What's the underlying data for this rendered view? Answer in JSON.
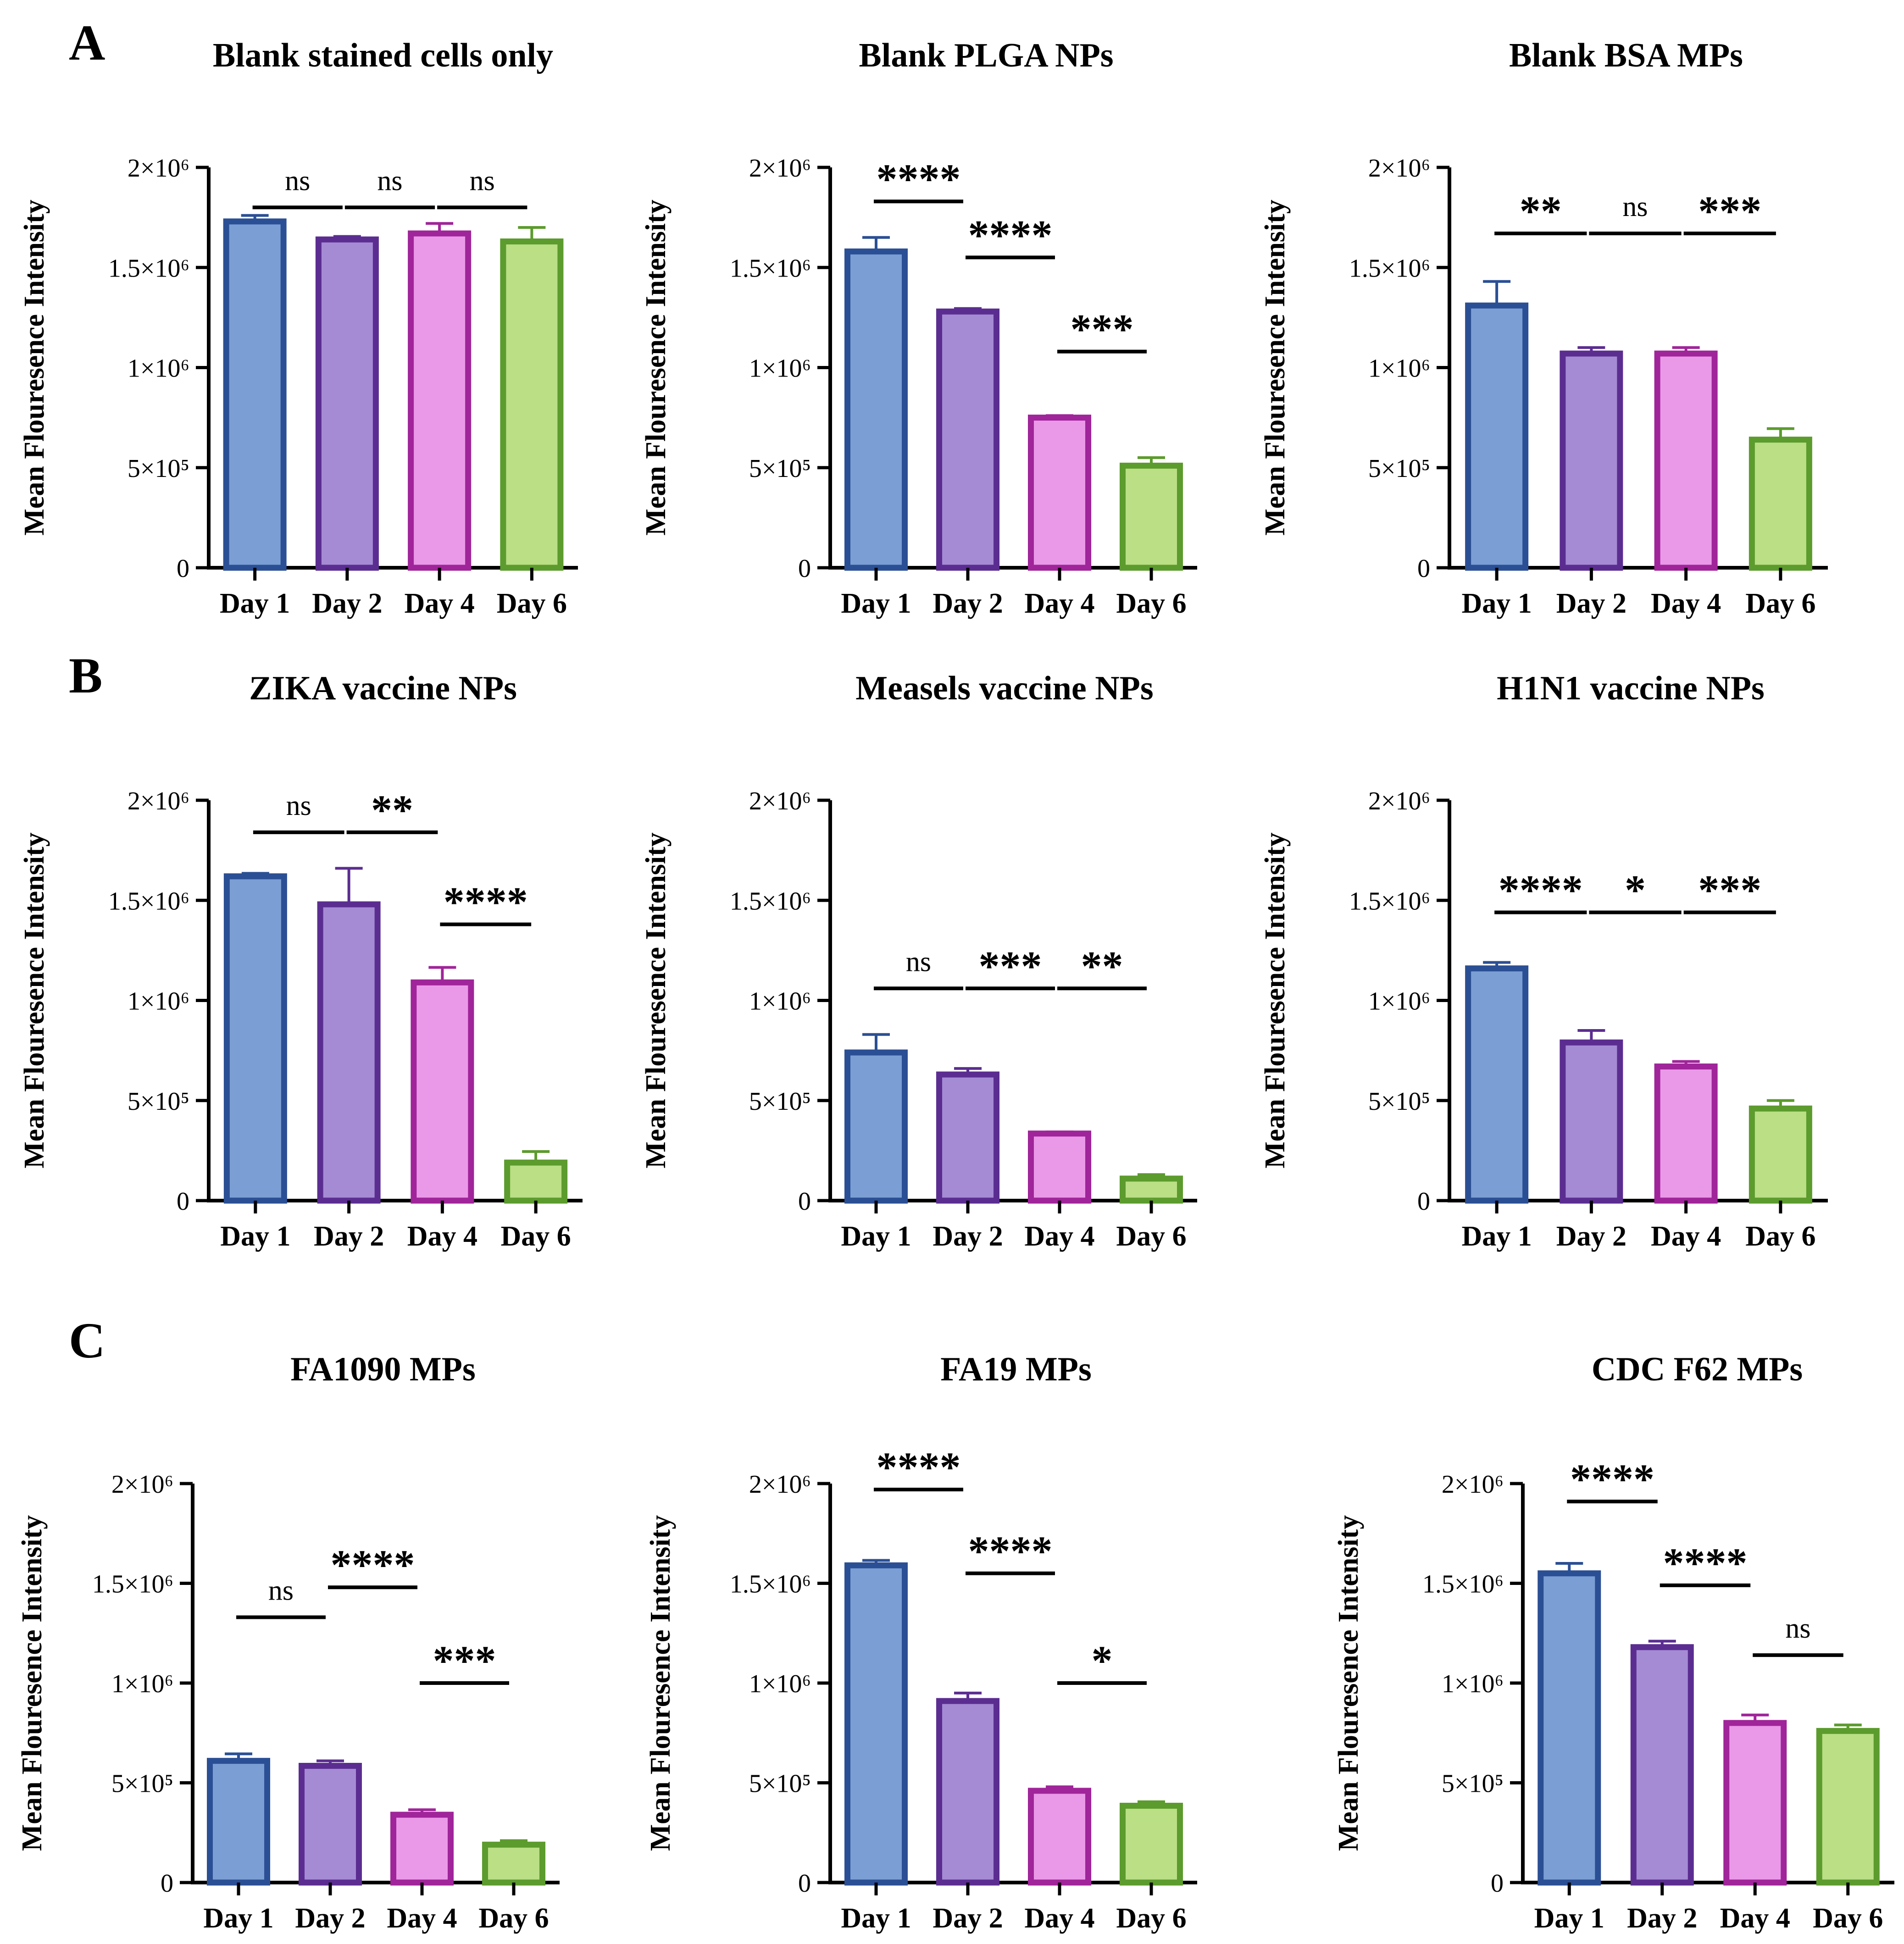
{
  "figure": {
    "panel_letters": [
      "A",
      "B",
      "C"
    ]
  },
  "colors": {
    "fill": [
      "#7b9fd4",
      "#a58bd4",
      "#ea99e9",
      "#badf85"
    ],
    "stroke": [
      "#2b4f94",
      "#5b2d91",
      "#a0249a",
      "#5c9b2d"
    ],
    "axis": "#000000"
  },
  "chart_data": [
    {
      "type": "bar",
      "title": "Blank stained cells only",
      "ylabel": "Mean Flouresence Intensity",
      "xlabel": "",
      "categories": [
        "Day 1",
        "Day 2",
        "Day 4",
        "Day 6"
      ],
      "values": [
        1730000,
        1640000,
        1670000,
        1630000
      ],
      "errors": [
        30000,
        15000,
        50000,
        70000
      ],
      "ylim": [
        0,
        2000000
      ],
      "yticks": [
        "0",
        "5×10⁵",
        "1×10⁶",
        "1.5×10⁶",
        "2×10⁶"
      ],
      "comparisons": [
        {
          "from": 0,
          "to": 1,
          "label": "ns",
          "y": 1800000
        },
        {
          "from": 1,
          "to": 2,
          "label": "ns",
          "y": 1800000
        },
        {
          "from": 2,
          "to": 3,
          "label": "ns",
          "y": 1800000
        }
      ]
    },
    {
      "type": "bar",
      "title": "Blank PLGA NPs",
      "ylabel": "Mean Flouresence Intensity",
      "xlabel": "",
      "categories": [
        "Day 1",
        "Day 2",
        "Day 4",
        "Day 6"
      ],
      "values": [
        1580000,
        1280000,
        750000,
        510000
      ],
      "errors": [
        70000,
        15000,
        10000,
        40000
      ],
      "ylim": [
        0,
        2000000
      ],
      "yticks": [
        "0",
        "5×10⁵",
        "1×10⁶",
        "1.5×10⁶",
        "2×10⁶"
      ],
      "comparisons": [
        {
          "from": 0,
          "to": 1,
          "label": "****",
          "y": 1830000
        },
        {
          "from": 1,
          "to": 2,
          "label": "****",
          "y": 1550000
        },
        {
          "from": 2,
          "to": 3,
          "label": "***",
          "y": 1080000
        }
      ]
    },
    {
      "type": "bar",
      "title": "Blank BSA MPs",
      "ylabel": "Mean Flouresence Intensity",
      "xlabel": "",
      "categories": [
        "Day 1",
        "Day 2",
        "Day 4",
        "Day 6"
      ],
      "values": [
        1310000,
        1070000,
        1070000,
        640000
      ],
      "errors": [
        120000,
        30000,
        30000,
        55000
      ],
      "ylim": [
        0,
        2000000
      ],
      "yticks": [
        "0",
        "5×10⁵",
        "1×10⁶",
        "1.5×10⁶",
        "2×10⁶"
      ],
      "comparisons": [
        {
          "from": 0,
          "to": 1,
          "label": "**",
          "y": 1670000
        },
        {
          "from": 1,
          "to": 2,
          "label": "ns",
          "y": 1670000
        },
        {
          "from": 2,
          "to": 3,
          "label": "***",
          "y": 1670000
        }
      ]
    },
    {
      "type": "bar",
      "title": "ZIKA vaccine NPs",
      "ylabel": "Mean Flouresence Intensity",
      "xlabel": "",
      "categories": [
        "Day 1",
        "Day 2",
        "Day 4",
        "Day 6"
      ],
      "values": [
        1620000,
        1480000,
        1090000,
        190000
      ],
      "errors": [
        15000,
        180000,
        75000,
        55000
      ],
      "ylim": [
        0,
        2000000
      ],
      "yticks": [
        "0",
        "5×10⁵",
        "1×10⁶",
        "1.5×10⁶",
        "2×10⁶"
      ],
      "comparisons": [
        {
          "from": 0,
          "to": 1,
          "label": "ns",
          "y": 1840000
        },
        {
          "from": 1,
          "to": 2,
          "label": "**",
          "y": 1840000
        },
        {
          "from": 2,
          "to": 3,
          "label": "****",
          "y": 1380000
        }
      ]
    },
    {
      "type": "bar",
      "title": "Measels vaccine NPs",
      "ylabel": "Mean Flouresence Intensity",
      "xlabel": "",
      "categories": [
        "Day 1",
        "Day 2",
        "Day 4",
        "Day 6"
      ],
      "values": [
        740000,
        630000,
        335000,
        110000
      ],
      "errors": [
        90000,
        30000,
        8000,
        20000
      ],
      "ylim": [
        0,
        2000000
      ],
      "yticks": [
        "0",
        "5×10⁵",
        "1×10⁶",
        "1.5×10⁶",
        "2×10⁶"
      ],
      "comparisons": [
        {
          "from": 0,
          "to": 1,
          "label": "ns",
          "y": 1060000
        },
        {
          "from": 1,
          "to": 2,
          "label": "***",
          "y": 1060000
        },
        {
          "from": 2,
          "to": 3,
          "label": "**",
          "y": 1060000
        }
      ]
    },
    {
      "type": "bar",
      "title": "H1N1 vaccine NPs",
      "ylabel": "Mean Flouresence Intensity",
      "xlabel": "",
      "categories": [
        "Day 1",
        "Day 2",
        "Day 4",
        "Day 6"
      ],
      "values": [
        1160000,
        790000,
        670000,
        460000
      ],
      "errors": [
        30000,
        60000,
        25000,
        40000
      ],
      "ylim": [
        0,
        2000000
      ],
      "yticks": [
        "0",
        "5×10⁵",
        "1×10⁶",
        "1.5×10⁶",
        "2×10⁶"
      ],
      "comparisons": [
        {
          "from": 0,
          "to": 1,
          "label": "****",
          "y": 1440000
        },
        {
          "from": 1,
          "to": 2,
          "label": "*",
          "y": 1440000
        },
        {
          "from": 2,
          "to": 3,
          "label": "***",
          "y": 1440000
        }
      ]
    },
    {
      "type": "bar",
      "title": "FA1090 MPs",
      "ylabel": "Mean Flouresence Intensity",
      "xlabel": "",
      "categories": [
        "Day 1",
        "Day 2",
        "Day 4",
        "Day 6"
      ],
      "values": [
        610000,
        585000,
        340000,
        190000
      ],
      "errors": [
        35000,
        25000,
        25000,
        20000
      ],
      "ylim": [
        0,
        2000000
      ],
      "yticks": [
        "0",
        "5×10⁵",
        "1×10⁶",
        "1.5×10⁶",
        "2×10⁶"
      ],
      "comparisons": [
        {
          "from": 0,
          "to": 1,
          "label": "ns",
          "y": 1330000
        },
        {
          "from": 1,
          "to": 2,
          "label": "****",
          "y": 1480000
        },
        {
          "from": 2,
          "to": 3,
          "label": "***",
          "y": 1000000
        }
      ]
    },
    {
      "type": "bar",
      "title": "FA19 MPs",
      "ylabel": "Mean Flouresence Intensity",
      "xlabel": "",
      "categories": [
        "Day 1",
        "Day 2",
        "Day 4",
        "Day 6"
      ],
      "values": [
        1590000,
        910000,
        460000,
        385000
      ],
      "errors": [
        25000,
        40000,
        20000,
        20000
      ],
      "ylim": [
        0,
        2000000
      ],
      "yticks": [
        "0",
        "5×10⁵",
        "1×10⁶",
        "1.5×10⁶",
        "2×10⁶"
      ],
      "comparisons": [
        {
          "from": 0,
          "to": 1,
          "label": "****",
          "y": 1970000
        },
        {
          "from": 1,
          "to": 2,
          "label": "****",
          "y": 1550000
        },
        {
          "from": 2,
          "to": 3,
          "label": "*",
          "y": 1000000
        }
      ]
    },
    {
      "type": "bar",
      "title": "CDC F62 MPs",
      "ylabel": "Mean Flouresence Intensity",
      "xlabel": "",
      "categories": [
        "Day 1",
        "Day 2",
        "Day 4",
        "Day 6"
      ],
      "values": [
        1550000,
        1180000,
        800000,
        760000
      ],
      "errors": [
        50000,
        30000,
        40000,
        30000
      ],
      "ylim": [
        0,
        2000000
      ],
      "yticks": [
        "0",
        "5×10⁵",
        "1×10⁶",
        "1.5×10⁶",
        "2×10⁶"
      ],
      "comparisons": [
        {
          "from": 0,
          "to": 1,
          "label": "****",
          "y": 1910000
        },
        {
          "from": 1,
          "to": 2,
          "label": "****",
          "y": 1490000
        },
        {
          "from": 2,
          "to": 3,
          "label": "ns",
          "y": 1140000
        }
      ]
    }
  ]
}
